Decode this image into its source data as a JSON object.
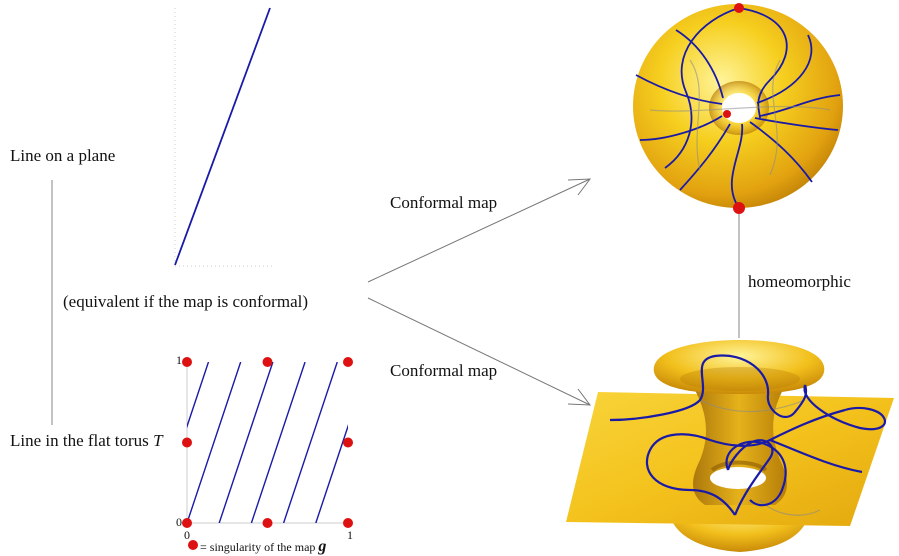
{
  "labels": {
    "line_on_plane": "Line on a plane",
    "equivalence": "(equivalent if the map is conformal)",
    "line_in_torus_prefix": "Line in the flat torus ",
    "line_in_torus_symbol": "T",
    "conformal_map_top": "Conformal map",
    "conformal_map_bottom": "Conformal map",
    "homeomorphic": "homeomorphic",
    "legend_eq": " = singularity of the map ",
    "legend_symbol": "g"
  },
  "ticks": {
    "zero_x": "0",
    "one_x": "1",
    "zero_y": "0",
    "one_y": "1"
  },
  "colors": {
    "line": "#1a1aa8",
    "singularity": "#dd1111",
    "surface": "#f2c21a",
    "surface_highlight": "#fff07a",
    "surface_shadow": "#c98a08",
    "connector": "#999999"
  }
}
